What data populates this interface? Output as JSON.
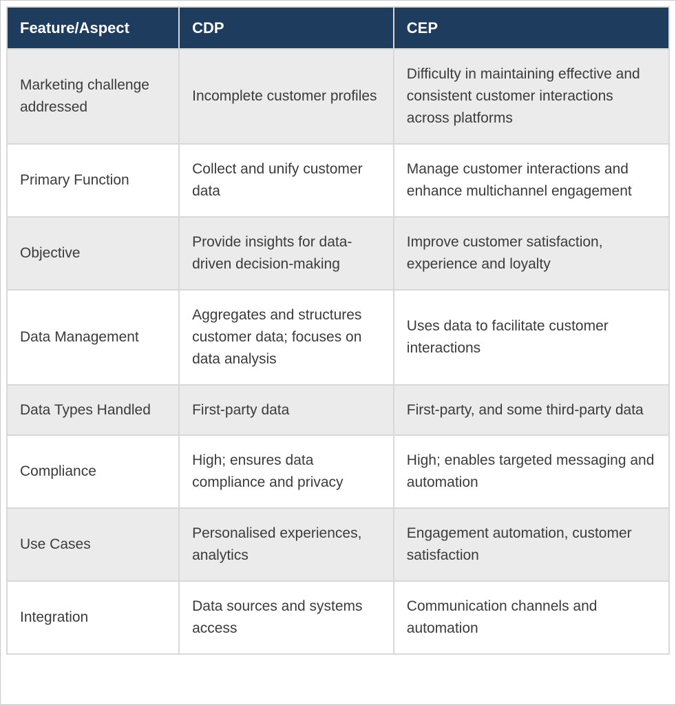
{
  "table": {
    "columns": [
      "Feature/Aspect",
      "CDP",
      "CEP"
    ],
    "rows": [
      {
        "feature": "Marketing challenge addressed",
        "cdp": "Incomplete customer profiles",
        "cep": "Difficulty in maintaining effective and consistent customer interactions across platforms"
      },
      {
        "feature": "Primary Function",
        "cdp": "Collect and unify customer data",
        "cep": "Manage customer interactions and enhance multichannel engagement"
      },
      {
        "feature": "Objective",
        "cdp": "Provide insights for data-driven decision-making",
        "cep": "Improve customer satisfaction, experience and loyalty"
      },
      {
        "feature": "Data Management",
        "cdp": "Aggregates and structures customer data; focuses on data analysis",
        "cep": "Uses data to facilitate customer interactions"
      },
      {
        "feature": "Data Types Handled",
        "cdp": "First-party data",
        "cep": "First-party, and some third-party data"
      },
      {
        "feature": "Compliance",
        "cdp": "High; ensures data compliance and privacy",
        "cep": "High; enables targeted messaging and automation"
      },
      {
        "feature": "Use Cases",
        "cdp": "Personalised experiences, analytics",
        "cep": "Engagement automation, customer satisfaction"
      },
      {
        "feature": "Integration",
        "cdp": "Data sources and systems access",
        "cep": "Communication channels and automation"
      }
    ],
    "colors": {
      "header_bg": "#1d3c5e",
      "header_text": "#ffffff",
      "row_alt_bg": "#ebebeb",
      "row_bg": "#ffffff",
      "body_text": "#3b3b3b",
      "border": "#d8d8d8"
    }
  }
}
